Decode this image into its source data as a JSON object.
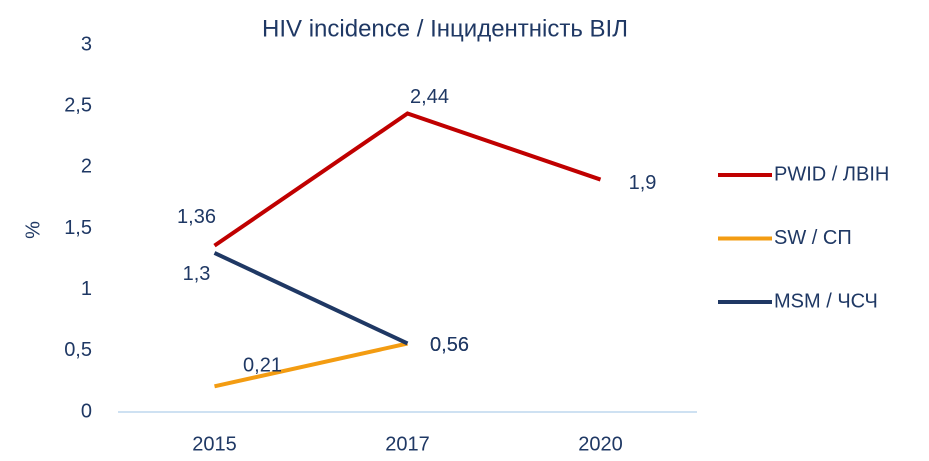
{
  "chart_data": {
    "type": "line",
    "title": "HIV incidence / Інцидентність ВІЛ",
    "y_label": "%",
    "categories": [
      "2015",
      "2017",
      "2020"
    ],
    "series": [
      {
        "name": "PWID / ЛВІН",
        "color": "#c00000",
        "values": [
          1.36,
          2.44,
          1.9
        ],
        "value_labels": [
          "1,36",
          "2,44",
          "1,9"
        ]
      },
      {
        "name": "SW / СП",
        "color": "#f39c12",
        "values": [
          0.21,
          0.56,
          null
        ],
        "value_labels": [
          "0,21",
          "0,56",
          null
        ]
      },
      {
        "name": "MSM / ЧСЧ",
        "color": "#1f3864",
        "values": [
          1.3,
          0.56,
          null
        ],
        "value_labels": [
          "1,3",
          "0,56",
          null
        ]
      }
    ],
    "ylim": [
      0,
      3
    ],
    "yticks": [
      0,
      {
        "value": 0.5,
        "label": "0,5"
      },
      1,
      {
        "value": 1.5,
        "label": "1,5"
      },
      2,
      {
        "value": 2.5,
        "label": "2,5"
      },
      3
    ],
    "legend": "right"
  }
}
